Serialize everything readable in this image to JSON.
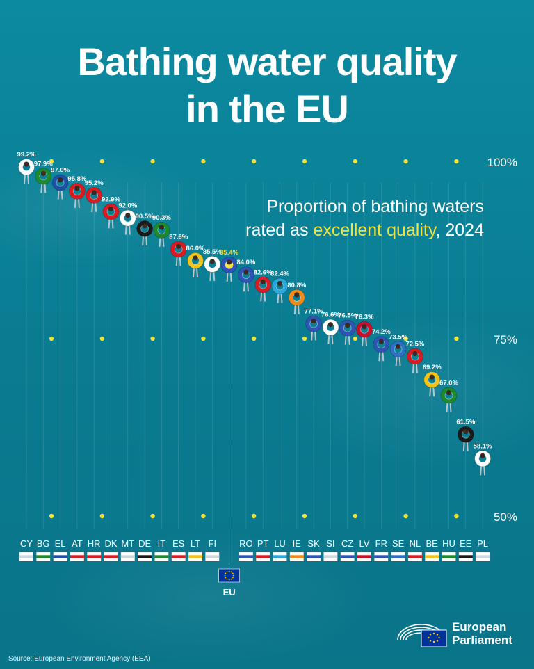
{
  "title_line1": "Bathing water quality",
  "title_line2": "in the EU",
  "subtitle": {
    "line1": "Proportion of bathing waters",
    "line2_pre": "rated as ",
    "line2_highlight": "excellent quality",
    "line2_post": ", 2024"
  },
  "source": "Source: European Environment Agency (EEA)",
  "logo": {
    "line1": "European",
    "line2": "Parliament"
  },
  "chart_data": {
    "type": "scatter",
    "title": "Proportion of bathing waters rated as excellent quality, 2024",
    "categories": [
      "CY",
      "BG",
      "EL",
      "AT",
      "HR",
      "DK",
      "MT",
      "DE",
      "IT",
      "ES",
      "LT",
      "FI",
      "EU",
      "RO",
      "PT",
      "LU",
      "IE",
      "SK",
      "SI",
      "CZ",
      "LV",
      "FR",
      "SE",
      "NL",
      "BE",
      "HU",
      "EE",
      "PL"
    ],
    "values": [
      99.2,
      97.9,
      97.0,
      95.8,
      95.2,
      92.9,
      92.0,
      90.5,
      90.3,
      87.6,
      86.0,
      85.5,
      85.4,
      84.0,
      82.6,
      82.4,
      80.8,
      77.1,
      76.6,
      76.5,
      76.3,
      74.2,
      73.5,
      72.5,
      69.2,
      67.0,
      61.5,
      58.1
    ],
    "value_labels": [
      "99.2%",
      "97.9%",
      "97.0%",
      "95.8%",
      "95.2%",
      "92.9%",
      "92.0%",
      "90.5%",
      "90.3%",
      "87.6%",
      "86.0%",
      "85.5%",
      "85.4%",
      "84.0%",
      "82.6%",
      "82.4%",
      "80.8%",
      "77.1%",
      "76.6%",
      "76.5%",
      "76.3%",
      "74.2%",
      "73.5%",
      "72.5%",
      "69.2%",
      "67.0%",
      "61.5%",
      "58.1%"
    ],
    "ylim": [
      50,
      100
    ],
    "y_ticks": [
      "100%",
      "75%",
      "50%"
    ],
    "highlight": "EU",
    "highlight_label": "EU",
    "grid": true,
    "colors": {
      "background": "#0b7f95",
      "highlight": "#f0e23a",
      "label": "#ffffff"
    },
    "ring_colors": [
      "#ffffff",
      "#1f8a2c",
      "#1f4fa6",
      "#d91c24",
      "#d91c24",
      "#d91c24",
      "#ffffff",
      "#1a1a1a",
      "#1f8a2c",
      "#d91c24",
      "#f2c318",
      "#ffffff",
      "#2f54b8",
      "#2f54b8",
      "#d91c24",
      "#29a8dc",
      "#f28a1a",
      "#2f54b8",
      "#ffffff",
      "#2f54b8",
      "#c8102e",
      "#2f54b8",
      "#2f6fc4",
      "#d91c24",
      "#f2c318",
      "#1f8a2c",
      "#1a1a1a",
      "#ffffff"
    ]
  }
}
